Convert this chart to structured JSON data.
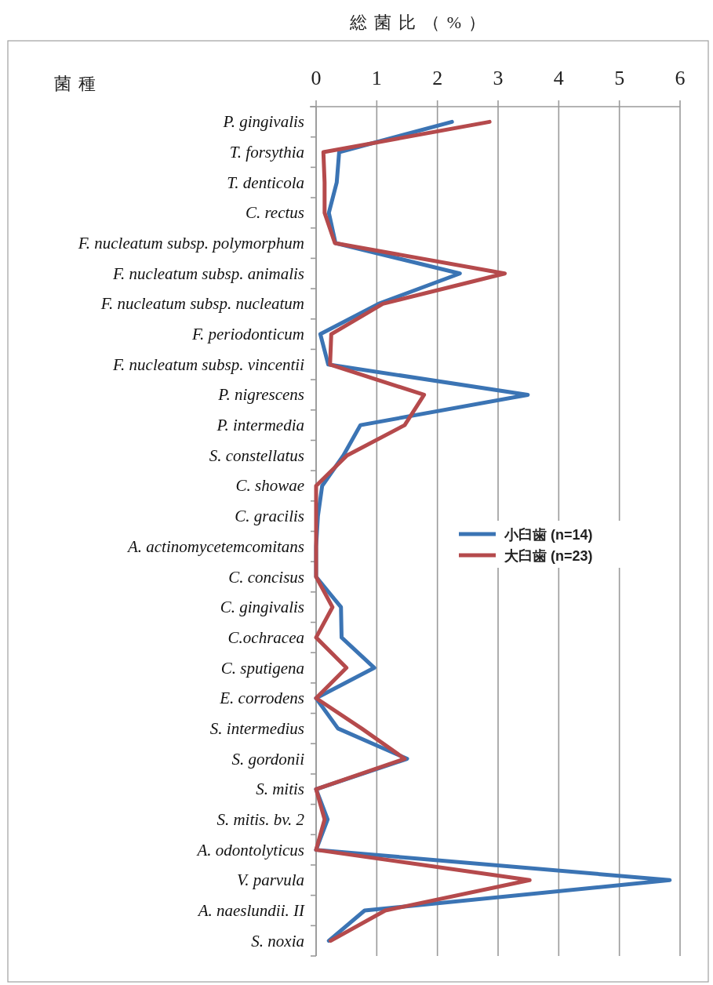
{
  "chart_data": {
    "type": "line",
    "orientation": "horizontal",
    "xlabel": "総菌比（%）",
    "ylabel": "菌種",
    "categories": [
      "P. gingivalis",
      "T. forsythia",
      "T. denticola",
      "C. rectus",
      "F. nucleatum subsp. polymorphum",
      "F. nucleatum subsp. animalis",
      "F. nucleatum subsp. nucleatum",
      "F. periodonticum",
      "F. nucleatum subsp. vincentii",
      "P. nigrescens",
      "P. intermedia",
      "S. constellatus",
      "C. showae",
      "C. gracilis",
      "A. actinomycetemcomitans",
      "C. concisus",
      "C. gingivalis",
      "C.ochracea",
      "C. sputigena",
      "E. corrodens",
      "S. intermedius",
      "S. gordonii",
      "S. mitis",
      "S. mitis. bv. 2",
      "A. odontolyticus",
      "V. parvula",
      "A. naeslundii. II",
      "S. noxia"
    ],
    "series": [
      {
        "name": "小臼歯 (n=14)",
        "color": "#3b74b4",
        "values": [
          2.24,
          0.38,
          0.34,
          0.21,
          0.32,
          2.37,
          1.03,
          0.07,
          0.2,
          3.49,
          0.73,
          0.45,
          0.1,
          0.03,
          0,
          0,
          0.41,
          0.42,
          0.96,
          0,
          0.36,
          1.5,
          0,
          0.19,
          0,
          5.83,
          0.8,
          0.21
        ]
      },
      {
        "name": "大臼歯 (n=23)",
        "color": "#b54a4c",
        "values": [
          2.86,
          0.12,
          0.14,
          0.14,
          0.31,
          3.11,
          1.1,
          0.25,
          0.23,
          1.78,
          1.46,
          0.51,
          0,
          0,
          0,
          0,
          0.27,
          0,
          0.5,
          0,
          0.75,
          1.46,
          0,
          0.14,
          0,
          3.52,
          1.14,
          0.24
        ]
      }
    ],
    "xlim": [
      0,
      6
    ],
    "xticks": [
      0,
      1,
      2,
      3,
      4,
      5,
      6
    ],
    "grid": "x",
    "legend": "right"
  }
}
